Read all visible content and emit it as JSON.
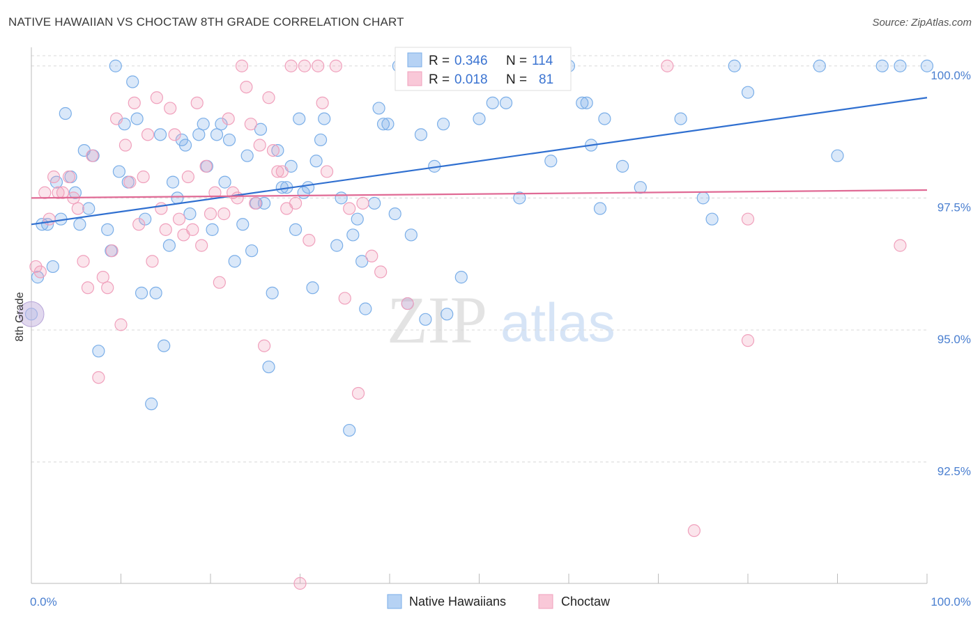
{
  "title": "NATIVE HAWAIIAN VS CHOCTAW 8TH GRADE CORRELATION CHART",
  "source": "Source: ZipAtlas.com",
  "watermark": {
    "zip": "ZIP",
    "atlas": "atlas"
  },
  "chart_data": {
    "type": "scatter",
    "ylabel": "8th Grade",
    "xlim": [
      0,
      100
    ],
    "ylim": [
      90.2,
      100.3
    ],
    "x_tick_labels": [
      {
        "value": 0,
        "label": "0.0%"
      },
      {
        "value": 100,
        "label": "100.0%"
      }
    ],
    "y_tick_labels": [
      {
        "value": 100.0,
        "label": "100.0%"
      },
      {
        "value": 97.5,
        "label": "97.5%"
      },
      {
        "value": 95.0,
        "label": "95.0%"
      },
      {
        "value": 92.5,
        "label": "92.5%"
      }
    ],
    "grid": "horizontal dashed",
    "legend_stats": [
      {
        "r_label": "R =",
        "r_value": "0.346",
        "n_label": "N =",
        "n_value": "114"
      },
      {
        "r_label": "R =",
        "r_value": "0.018",
        "n_label": "N =",
        "n_value": "81"
      }
    ],
    "series": [
      {
        "name": "Native Hawaiians",
        "color": "#7aaee8",
        "line_color": "#2f6fd0",
        "trend": {
          "x": [
            0,
            100
          ],
          "y": [
            97.0,
            99.4
          ]
        },
        "points": [
          [
            0,
            95.3
          ],
          [
            0.7,
            96.0
          ],
          [
            1.2,
            97.0
          ],
          [
            1.8,
            97.0
          ],
          [
            2.4,
            96.2
          ],
          [
            2.8,
            97.8
          ],
          [
            3.3,
            97.1
          ],
          [
            3.8,
            99.1
          ],
          [
            4.4,
            97.9
          ],
          [
            4.9,
            97.6
          ],
          [
            5.4,
            97.0
          ],
          [
            5.9,
            98.4
          ],
          [
            6.4,
            97.3
          ],
          [
            6.9,
            98.3
          ],
          [
            7.5,
            94.6
          ],
          [
            8.5,
            96.9
          ],
          [
            8.9,
            96.5
          ],
          [
            9.4,
            100.0
          ],
          [
            9.8,
            98.0
          ],
          [
            10.4,
            98.9
          ],
          [
            10.8,
            97.8
          ],
          [
            11.3,
            99.7
          ],
          [
            11.8,
            99.0
          ],
          [
            12.3,
            95.7
          ],
          [
            12.7,
            97.1
          ],
          [
            13.4,
            93.6
          ],
          [
            13.9,
            95.7
          ],
          [
            14.4,
            98.7
          ],
          [
            14.8,
            94.7
          ],
          [
            15.4,
            96.6
          ],
          [
            15.8,
            97.8
          ],
          [
            16.3,
            97.5
          ],
          [
            16.8,
            98.6
          ],
          [
            17.2,
            98.5
          ],
          [
            17.7,
            97.2
          ],
          [
            18.7,
            98.7
          ],
          [
            19.2,
            98.9
          ],
          [
            19.6,
            98.1
          ],
          [
            20.2,
            96.9
          ],
          [
            20.7,
            98.7
          ],
          [
            21.2,
            98.9
          ],
          [
            21.6,
            97.8
          ],
          [
            22.1,
            98.6
          ],
          [
            22.7,
            96.3
          ],
          [
            23.6,
            97.0
          ],
          [
            24.1,
            98.3
          ],
          [
            24.6,
            96.5
          ],
          [
            25.1,
            97.4
          ],
          [
            25.6,
            98.8
          ],
          [
            26.0,
            97.4
          ],
          [
            26.5,
            94.3
          ],
          [
            26.9,
            95.7
          ],
          [
            27.5,
            98.4
          ],
          [
            28.0,
            97.7
          ],
          [
            28.5,
            97.7
          ],
          [
            29.0,
            98.1
          ],
          [
            29.5,
            96.9
          ],
          [
            29.9,
            99.0
          ],
          [
            30.4,
            97.6
          ],
          [
            30.9,
            97.7
          ],
          [
            31.4,
            95.8
          ],
          [
            31.8,
            98.2
          ],
          [
            32.3,
            98.6
          ],
          [
            32.7,
            99.0
          ],
          [
            34.1,
            96.6
          ],
          [
            34.6,
            97.5
          ],
          [
            35.5,
            93.1
          ],
          [
            35.9,
            96.8
          ],
          [
            36.4,
            97.1
          ],
          [
            36.9,
            96.3
          ],
          [
            37.3,
            95.4
          ],
          [
            38.3,
            97.4
          ],
          [
            38.8,
            99.2
          ],
          [
            39.3,
            98.9
          ],
          [
            39.8,
            98.9
          ],
          [
            40.6,
            97.2
          ],
          [
            41.0,
            100.0
          ],
          [
            42.0,
            95.5
          ],
          [
            42.4,
            96.8
          ],
          [
            43.5,
            98.7
          ],
          [
            44.0,
            95.2
          ],
          [
            45.0,
            98.1
          ],
          [
            45.5,
            100.0
          ],
          [
            46.0,
            98.9
          ],
          [
            46.4,
            95.3
          ],
          [
            47.0,
            100.0
          ],
          [
            48.0,
            96.0
          ],
          [
            48.5,
            100.0
          ],
          [
            50.0,
            99.0
          ],
          [
            51.5,
            99.3
          ],
          [
            52.2,
            100.0
          ],
          [
            53.0,
            99.3
          ],
          [
            54.5,
            97.5
          ],
          [
            55.0,
            100.0
          ],
          [
            56.0,
            100.0
          ],
          [
            58.0,
            98.2
          ],
          [
            60.0,
            100.0
          ],
          [
            61.5,
            99.3
          ],
          [
            62.0,
            99.3
          ],
          [
            62.5,
            98.5
          ],
          [
            63.5,
            97.3
          ],
          [
            64.0,
            99.0
          ],
          [
            66.0,
            98.1
          ],
          [
            68.0,
            97.7
          ],
          [
            72.5,
            99.0
          ],
          [
            75.0,
            97.5
          ],
          [
            76.0,
            97.1
          ],
          [
            78.5,
            100.0
          ],
          [
            80.0,
            99.5
          ],
          [
            90.0,
            98.3
          ],
          [
            95.0,
            100.0
          ],
          [
            97.0,
            100.0
          ],
          [
            88.0,
            100.0
          ],
          [
            100.0,
            100.0
          ]
        ]
      },
      {
        "name": "Choctaw",
        "color": "#f0a0bc",
        "line_color": "#e06a95",
        "trend": {
          "x": [
            0,
            100
          ],
          "y": [
            97.5,
            97.65
          ]
        },
        "points": [
          [
            0.5,
            96.2
          ],
          [
            1.0,
            96.1
          ],
          [
            1.5,
            97.6
          ],
          [
            2.0,
            97.1
          ],
          [
            2.5,
            97.9
          ],
          [
            3.0,
            97.6
          ],
          [
            3.5,
            97.6
          ],
          [
            4.2,
            97.9
          ],
          [
            4.7,
            97.5
          ],
          [
            5.2,
            97.3
          ],
          [
            5.8,
            96.3
          ],
          [
            6.3,
            95.8
          ],
          [
            6.8,
            98.3
          ],
          [
            7.5,
            94.1
          ],
          [
            8.0,
            96.0
          ],
          [
            8.5,
            95.8
          ],
          [
            9.0,
            96.5
          ],
          [
            9.5,
            99.0
          ],
          [
            10.0,
            95.1
          ],
          [
            10.5,
            98.5
          ],
          [
            11.0,
            97.8
          ],
          [
            11.5,
            99.3
          ],
          [
            12.0,
            97.0
          ],
          [
            12.5,
            97.9
          ],
          [
            13.0,
            98.7
          ],
          [
            13.5,
            96.3
          ],
          [
            14.0,
            99.4
          ],
          [
            14.5,
            97.3
          ],
          [
            15.0,
            96.9
          ],
          [
            15.5,
            99.2
          ],
          [
            16.0,
            98.7
          ],
          [
            16.5,
            97.1
          ],
          [
            17.0,
            96.8
          ],
          [
            17.5,
            97.9
          ],
          [
            18.0,
            96.9
          ],
          [
            18.5,
            99.3
          ],
          [
            19.0,
            96.6
          ],
          [
            19.5,
            98.1
          ],
          [
            20.0,
            97.2
          ],
          [
            20.5,
            97.6
          ],
          [
            21.0,
            95.9
          ],
          [
            21.5,
            97.2
          ],
          [
            22.0,
            99.0
          ],
          [
            22.5,
            97.6
          ],
          [
            23.0,
            97.5
          ],
          [
            23.5,
            100.0
          ],
          [
            24.0,
            99.6
          ],
          [
            24.5,
            98.9
          ],
          [
            25.0,
            97.4
          ],
          [
            25.5,
            98.5
          ],
          [
            26.0,
            94.7
          ],
          [
            26.5,
            99.4
          ],
          [
            27.0,
            98.4
          ],
          [
            27.5,
            98.0
          ],
          [
            28.0,
            98.0
          ],
          [
            28.5,
            97.3
          ],
          [
            29.0,
            100.0
          ],
          [
            29.5,
            97.4
          ],
          [
            30.0,
            90.2
          ],
          [
            30.5,
            100.0
          ],
          [
            31.0,
            96.7
          ],
          [
            32.0,
            100.0
          ],
          [
            32.5,
            99.3
          ],
          [
            33.0,
            98.0
          ],
          [
            34.0,
            100.0
          ],
          [
            35.0,
            95.6
          ],
          [
            35.5,
            97.3
          ],
          [
            36.5,
            93.8
          ],
          [
            37.0,
            97.4
          ],
          [
            38.0,
            96.4
          ],
          [
            39.0,
            96.1
          ],
          [
            42.0,
            95.5
          ],
          [
            44.0,
            100.0
          ],
          [
            47.0,
            100.0
          ],
          [
            51.0,
            100.0
          ],
          [
            53.0,
            100.0
          ],
          [
            71.0,
            100.0
          ],
          [
            74.0,
            91.2
          ],
          [
            80.0,
            97.1
          ],
          [
            80.0,
            94.8
          ],
          [
            97.0,
            96.6
          ]
        ]
      }
    ]
  }
}
